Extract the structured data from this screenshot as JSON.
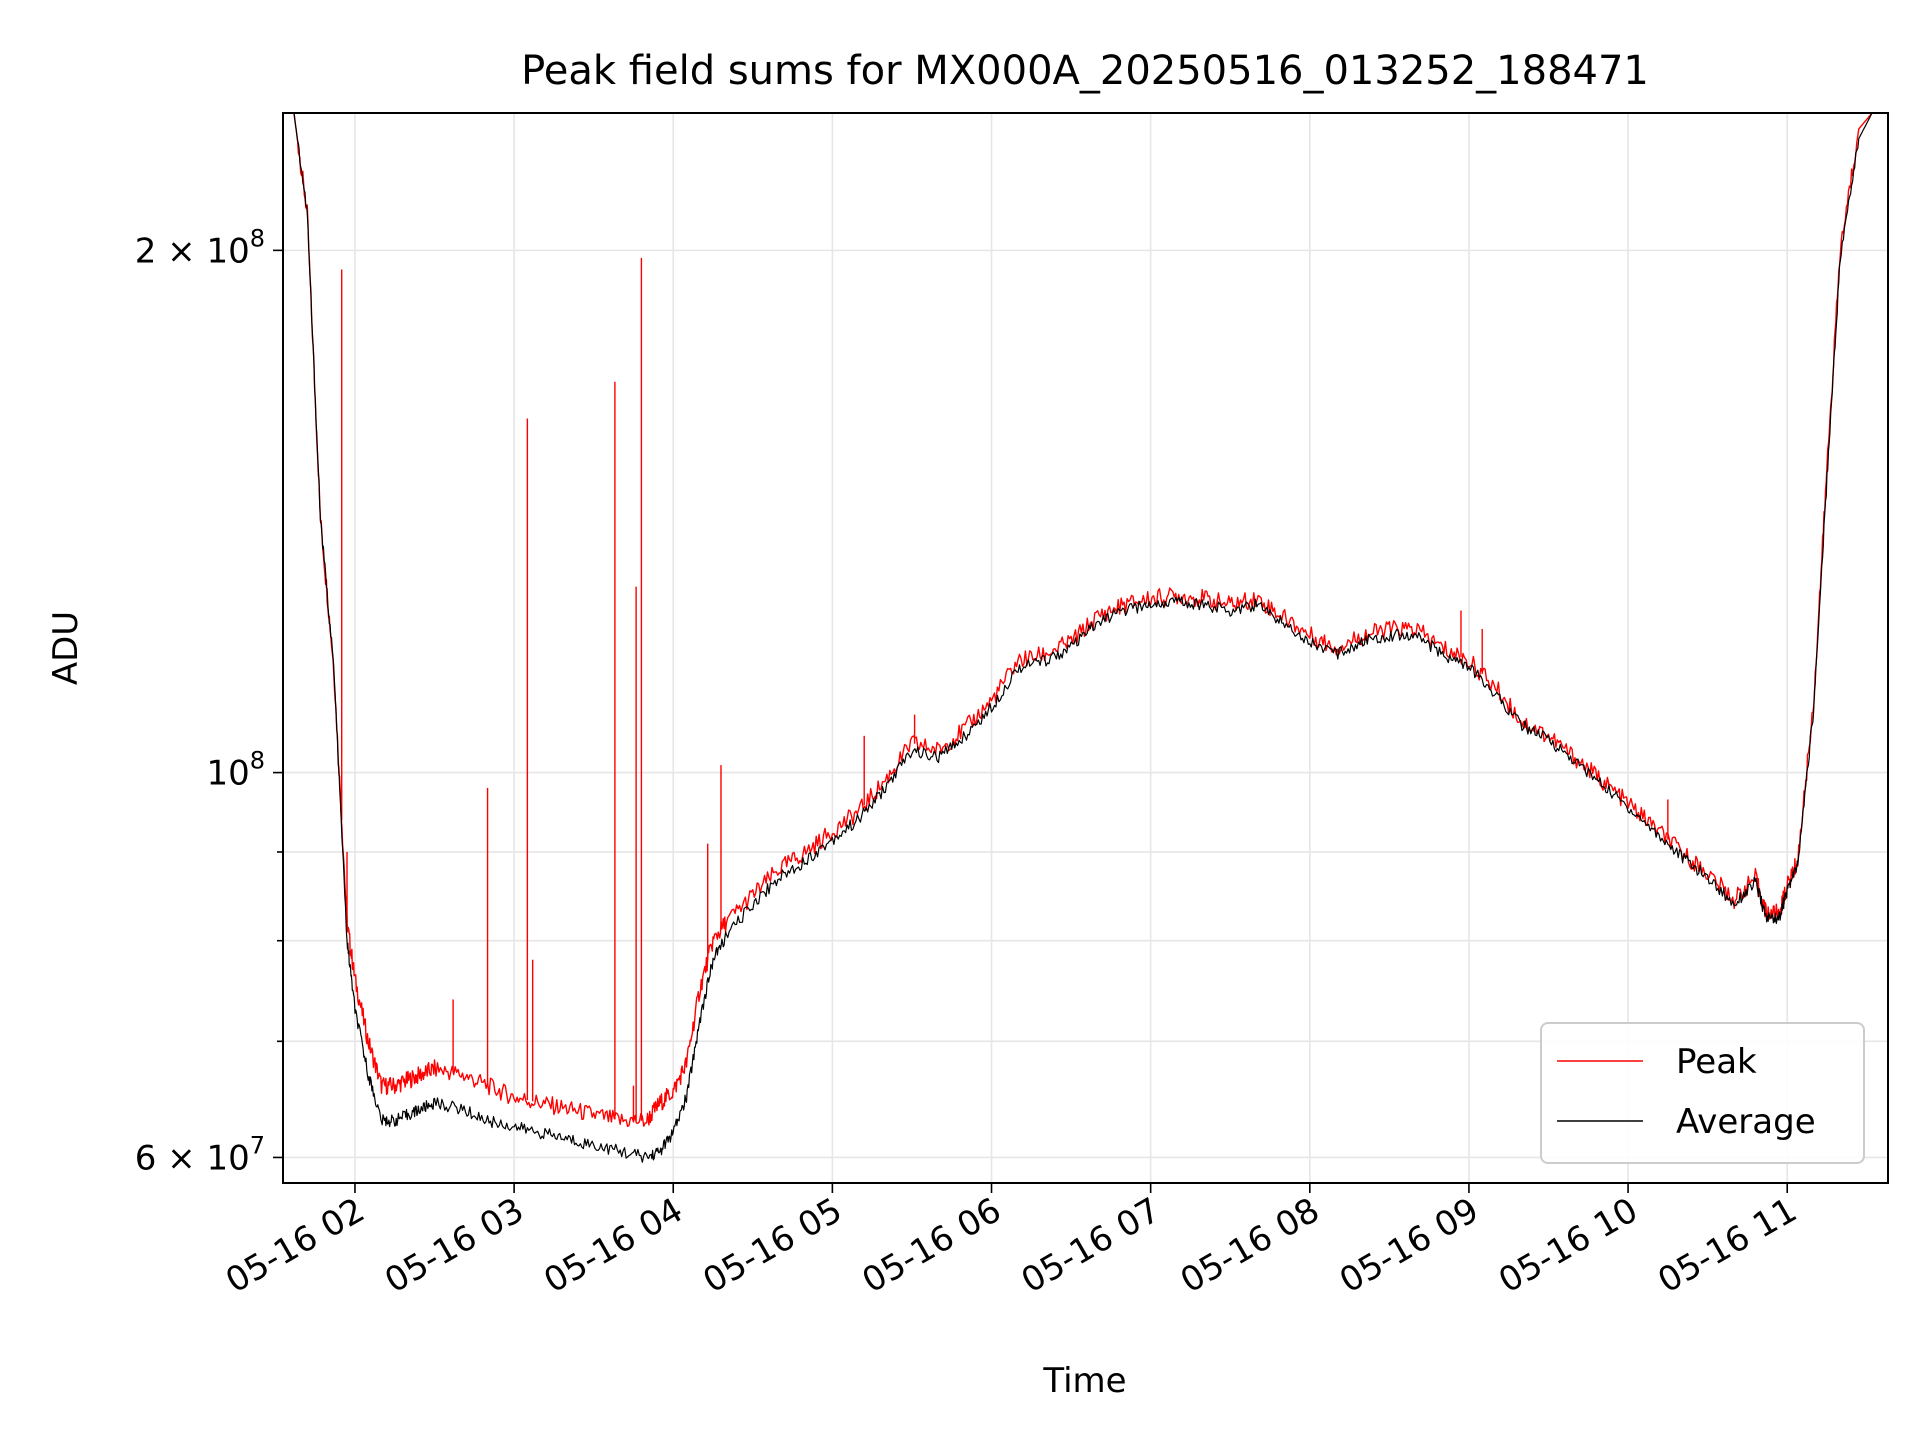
{
  "chart_data": {
    "type": "line",
    "title": "Peak field sums for MX000A_20250516_013252_188471",
    "xlabel": "Time",
    "ylabel": "ADU",
    "y_scale": "log",
    "ylim": [
      58000000,
      240000000
    ],
    "xlim": [
      "2025-05-16 01:32:52",
      "2025-05-16 11:38:00"
    ],
    "grid": true,
    "legend_position": "lower right",
    "x_tick_labels": [
      "05-16 02",
      "05-16 03",
      "05-16 04",
      "05-16 05",
      "05-16 06",
      "05-16 07",
      "05-16 08",
      "05-16 09",
      "05-16 10",
      "05-16 11"
    ],
    "x_ticks": [
      "2025-05-16 02:00",
      "2025-05-16 03:00",
      "2025-05-16 04:00",
      "2025-05-16 05:00",
      "2025-05-16 06:00",
      "2025-05-16 07:00",
      "2025-05-16 08:00",
      "2025-05-16 09:00",
      "2025-05-16 10:00",
      "2025-05-16 11:00"
    ],
    "y_major_ticks": [
      {
        "value": 60000000,
        "mantissa": "6",
        "base": "10",
        "exp": "7"
      },
      {
        "value": 100000000,
        "mantissa": "",
        "base": "10",
        "exp": "8"
      },
      {
        "value": 200000000,
        "mantissa": "2",
        "base": "10",
        "exp": "8"
      }
    ],
    "y_minor_ticks": [
      70000000,
      80000000,
      90000000
    ],
    "series": [
      {
        "name": "Peak",
        "color": "#ff0000",
        "x": [
          "01:32",
          "01:37",
          "01:42",
          "01:47",
          "01:52",
          "01:57",
          "02:00",
          "02:05",
          "02:10",
          "02:15",
          "02:20",
          "02:25",
          "02:30",
          "02:40",
          "02:50",
          "03:00",
          "03:10",
          "03:20",
          "03:30",
          "03:40",
          "03:50",
          "03:55",
          "04:00",
          "04:05",
          "04:10",
          "04:15",
          "04:20",
          "04:30",
          "04:40",
          "04:50",
          "05:00",
          "05:10",
          "05:20",
          "05:30",
          "05:40",
          "05:50",
          "06:00",
          "06:10",
          "06:20",
          "06:30",
          "06:40",
          "06:50",
          "07:00",
          "07:10",
          "07:20",
          "07:30",
          "07:40",
          "07:50",
          "08:00",
          "08:10",
          "08:20",
          "08:30",
          "08:40",
          "08:50",
          "09:00",
          "09:10",
          "09:20",
          "09:30",
          "09:40",
          "09:50",
          "10:00",
          "10:10",
          "10:20",
          "10:30",
          "10:40",
          "10:48",
          "10:52",
          "10:57",
          "11:00",
          "11:04",
          "11:10",
          "11:15",
          "11:20",
          "11:27",
          "11:32",
          "11:38"
        ],
        "y": [
          240000000,
          240000000,
          210000000,
          140000000,
          115000000,
          82000000,
          76000000,
          70000000,
          66000000,
          66000000,
          66500000,
          67000000,
          67500000,
          67000000,
          66000000,
          65000000,
          64500000,
          64000000,
          63500000,
          63000000,
          63000000,
          64500000,
          65500000,
          68000000,
          75000000,
          80000000,
          82000000,
          85000000,
          88000000,
          90000000,
          92500000,
          95000000,
          99000000,
          104000000,
          103000000,
          106000000,
          110000000,
          116000000,
          117000000,
          119000000,
          123000000,
          125000000,
          126000000,
          126500000,
          126000000,
          125000000,
          126000000,
          123000000,
          120000000,
          118000000,
          120000000,
          121000000,
          121000000,
          118000000,
          116000000,
          112000000,
          107000000,
          105000000,
          102000000,
          99000000,
          96000000,
          93000000,
          90000000,
          87500000,
          84500000,
          87000000,
          83000000,
          83000000,
          86000000,
          89000000,
          110000000,
          150000000,
          200000000,
          235000000,
          240000000,
          240000000
        ],
        "spikes": [
          {
            "x": "01:55",
            "y": 195000000
          },
          {
            "x": "01:57",
            "y": 90000000
          },
          {
            "x": "02:50",
            "y": 98000000
          },
          {
            "x": "02:37",
            "y": 74000000
          },
          {
            "x": "03:05",
            "y": 160000000
          },
          {
            "x": "03:07",
            "y": 78000000
          },
          {
            "x": "03:38",
            "y": 168000000
          },
          {
            "x": "03:45",
            "y": 66000000
          },
          {
            "x": "03:46",
            "y": 128000000
          },
          {
            "x": "03:48",
            "y": 198000000
          },
          {
            "x": "04:13",
            "y": 91000000
          },
          {
            "x": "04:18",
            "y": 101000000
          },
          {
            "x": "05:12",
            "y": 105000000
          },
          {
            "x": "05:31",
            "y": 108000000
          },
          {
            "x": "08:57",
            "y": 124000000
          },
          {
            "x": "09:05",
            "y": 121000000
          },
          {
            "x": "10:15",
            "y": 96500000
          }
        ]
      },
      {
        "name": "Average",
        "color": "#000000",
        "x": [
          "01:32",
          "01:37",
          "01:42",
          "01:47",
          "01:52",
          "01:57",
          "02:00",
          "02:05",
          "02:10",
          "02:15",
          "02:20",
          "02:25",
          "02:30",
          "02:40",
          "02:50",
          "03:00",
          "03:10",
          "03:20",
          "03:30",
          "03:40",
          "03:50",
          "03:55",
          "04:00",
          "04:05",
          "04:10",
          "04:15",
          "04:20",
          "04:30",
          "04:40",
          "04:50",
          "05:00",
          "05:10",
          "05:20",
          "05:30",
          "05:40",
          "05:50",
          "06:00",
          "06:10",
          "06:20",
          "06:30",
          "06:40",
          "06:50",
          "07:00",
          "07:10",
          "07:20",
          "07:30",
          "07:40",
          "07:50",
          "08:00",
          "08:10",
          "08:20",
          "08:30",
          "08:40",
          "08:50",
          "09:00",
          "09:10",
          "09:20",
          "09:30",
          "09:40",
          "09:50",
          "10:00",
          "10:10",
          "10:20",
          "10:30",
          "10:40",
          "10:48",
          "10:52",
          "10:57",
          "11:00",
          "11:04",
          "11:10",
          "11:15",
          "11:20",
          "11:27",
          "11:32",
          "11:38"
        ],
        "y": [
          240000000,
          240000000,
          210000000,
          140000000,
          115000000,
          80000000,
          73000000,
          67000000,
          63000000,
          63000000,
          63500000,
          64000000,
          64500000,
          64000000,
          63000000,
          62500000,
          62000000,
          61500000,
          61000000,
          60500000,
          60000000,
          60500000,
          62000000,
          65000000,
          72000000,
          78000000,
          80500000,
          84000000,
          87000000,
          89000000,
          91500000,
          94000000,
          98000000,
          103000000,
          102000000,
          105000000,
          109000000,
          115000000,
          116000000,
          118000000,
          122000000,
          124000000,
          125000000,
          125500000,
          125000000,
          124000000,
          125000000,
          122000000,
          119000000,
          117000000,
          119000000,
          120000000,
          120000000,
          117000000,
          115000000,
          111000000,
          106500000,
          104500000,
          101500000,
          98500000,
          95500000,
          92500000,
          89500000,
          87000000,
          84000000,
          86500000,
          82500000,
          82500000,
          85500000,
          88500000,
          109000000,
          148000000,
          198000000,
          232000000,
          240000000,
          240000000
        ]
      }
    ]
  }
}
